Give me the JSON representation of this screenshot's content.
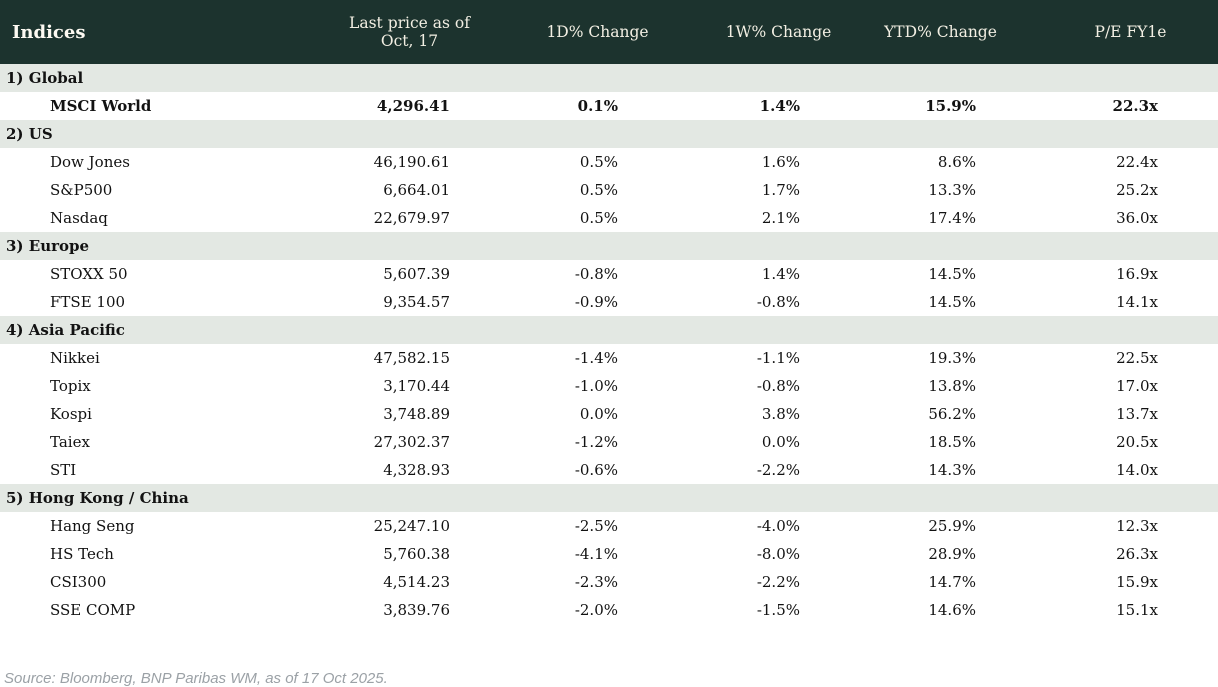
{
  "chart_data": {
    "type": "table",
    "title": "Indices",
    "columns": [
      "Indices",
      "Last price as of Oct, 17",
      "1D% Change",
      "1W% Change",
      "YTD% Change",
      "P/E FY1e"
    ],
    "sections": [
      {
        "label": "1) Global",
        "rows": [
          {
            "name": "MSCI World",
            "price": "4,296.41",
            "d1": "0.1%",
            "w1": "1.4%",
            "ytd": "15.9%",
            "pe": "22.3x",
            "bold": true
          }
        ]
      },
      {
        "label": "2) US",
        "rows": [
          {
            "name": "Dow Jones",
            "price": "46,190.61",
            "d1": "0.5%",
            "w1": "1.6%",
            "ytd": "8.6%",
            "pe": "22.4x"
          },
          {
            "name": "S&P500",
            "price": "6,664.01",
            "d1": "0.5%",
            "w1": "1.7%",
            "ytd": "13.3%",
            "pe": "25.2x"
          },
          {
            "name": "Nasdaq",
            "price": "22,679.97",
            "d1": "0.5%",
            "w1": "2.1%",
            "ytd": "17.4%",
            "pe": "36.0x"
          }
        ]
      },
      {
        "label": "3) Europe",
        "rows": [
          {
            "name": "STOXX 50",
            "price": "5,607.39",
            "d1": "-0.8%",
            "w1": "1.4%",
            "ytd": "14.5%",
            "pe": "16.9x"
          },
          {
            "name": "FTSE 100",
            "price": "9,354.57",
            "d1": "-0.9%",
            "w1": "-0.8%",
            "ytd": "14.5%",
            "pe": "14.1x"
          }
        ]
      },
      {
        "label": "4) Asia Pacific",
        "rows": [
          {
            "name": "Nikkei",
            "price": "47,582.15",
            "d1": "-1.4%",
            "w1": "-1.1%",
            "ytd": "19.3%",
            "pe": "22.5x"
          },
          {
            "name": "Topix",
            "price": "3,170.44",
            "d1": "-1.0%",
            "w1": "-0.8%",
            "ytd": "13.8%",
            "pe": "17.0x"
          },
          {
            "name": "Kospi",
            "price": "3,748.89",
            "d1": "0.0%",
            "w1": "3.8%",
            "ytd": "56.2%",
            "pe": "13.7x"
          },
          {
            "name": "Taiex",
            "price": "27,302.37",
            "d1": "-1.2%",
            "w1": "0.0%",
            "ytd": "18.5%",
            "pe": "20.5x"
          },
          {
            "name": "STI",
            "price": "4,328.93",
            "d1": "-0.6%",
            "w1": "-2.2%",
            "ytd": "14.3%",
            "pe": "14.0x"
          }
        ]
      },
      {
        "label": "5) Hong Kong / China",
        "rows": [
          {
            "name": "Hang Seng",
            "price": "25,247.10",
            "d1": "-2.5%",
            "w1": "-4.0%",
            "ytd": "25.9%",
            "pe": "12.3x"
          },
          {
            "name": "HS Tech",
            "price": "5,760.38",
            "d1": "-4.1%",
            "w1": "-8.0%",
            "ytd": "28.9%",
            "pe": "26.3x"
          },
          {
            "name": "CSI300",
            "price": "4,514.23",
            "d1": "-2.3%",
            "w1": "-2.2%",
            "ytd": "14.7%",
            "pe": "15.9x"
          },
          {
            "name": "SSE COMP",
            "price": "3,839.76",
            "d1": "-2.0%",
            "w1": "-1.5%",
            "ytd": "14.6%",
            "pe": "15.1x"
          }
        ]
      }
    ]
  },
  "footer": {
    "source": "Source: Bloomberg, BNP Paribas WM, as of 17 Oct 2025."
  },
  "colors": {
    "header_bg": "#1c332e",
    "header_title_text": "#fdfaf2",
    "header_column_text": "#f2efe3",
    "section_row_bg": "#e3e8e3",
    "data_row_bg": "#ffffff",
    "positive": "#009421",
    "negative": "#c80014",
    "text": "#121212",
    "source_text": "#9ba1a6"
  }
}
